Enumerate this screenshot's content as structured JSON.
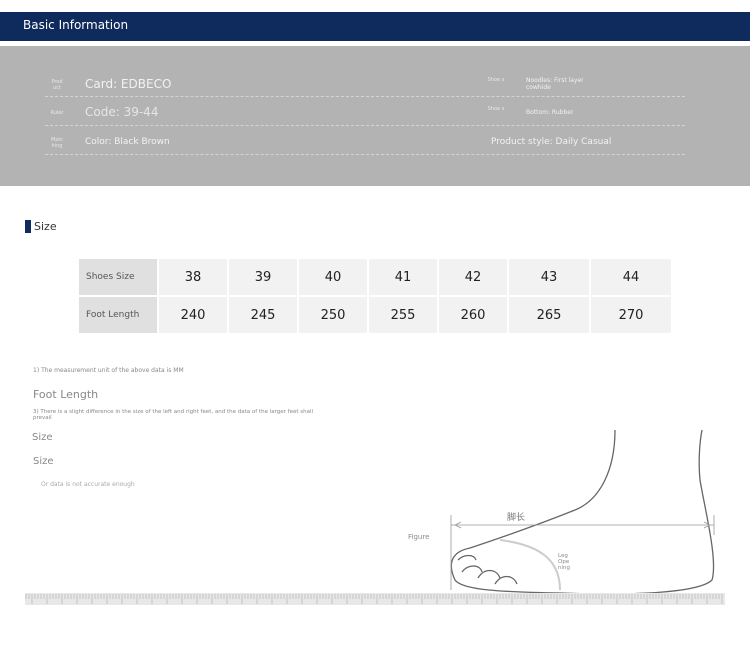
{
  "header": {
    "title": "Basic Information"
  },
  "info": {
    "rows": [
      {
        "left_label": "Prod uct",
        "left_value": "Card: EDBECO",
        "right_label": "Shoe s",
        "right_value": "Noodles: First layer cowhide"
      },
      {
        "left_label": "Ruler",
        "left_value": "Code: 39-44",
        "right_label": "Shoe s",
        "right_value": "Bottom: Rubber"
      },
      {
        "left_label": "Matc hing",
        "left_value": "Color: Black Brown",
        "right_label": "",
        "right_value": "Product style: Daily Casual"
      }
    ]
  },
  "size_section": {
    "title": "Size"
  },
  "size_table": {
    "row_headers": [
      "Shoes Size",
      "Foot Length"
    ],
    "sizes": [
      "38",
      "39",
      "40",
      "41",
      "42",
      "43",
      "44"
    ],
    "lengths": [
      "240",
      "245",
      "250",
      "255",
      "260",
      "265",
      "270"
    ]
  },
  "notes": {
    "note1": "1) The measurement unit of the above data is MM",
    "foot_length": "Foot Length",
    "note3": "3) There is a slight difference in the size of the left and right feet, and the data of the larger feet shall prevail",
    "size1": "Size",
    "size2": "Size",
    "note4": "Or data is not accurate enough"
  },
  "figure": {
    "caption": "Figure",
    "length_label": "脚长",
    "opening_label": "Leg Ope ning"
  },
  "colors": {
    "header": "#0f2a5c",
    "info_bg": "#b3b3b3"
  }
}
